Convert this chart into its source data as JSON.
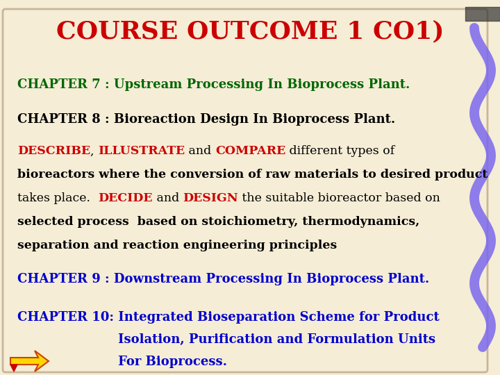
{
  "title": "COURSE OUTCOME 1 CO1)",
  "title_color": "#CC0000",
  "title_fontsize": 26,
  "background_color": "#F5EDD6",
  "figsize": [
    7.2,
    5.4
  ],
  "dpi": 100,
  "chapter7": "CHAPTER 7 : Upstream Processing In Bioprocess Plant.",
  "chapter7_color": "#006600",
  "chapter7_fontsize": 13,
  "chapter8": "CHAPTER 8 : Bioreaction Design In Bioprocess Plant.",
  "chapter8_color": "#000000",
  "chapter8_fontsize": 13,
  "chapter9": "CHAPTER 9 : Downstream Processing In Bioprocess Plant.",
  "chapter9_color": "#0000CC",
  "chapter9_fontsize": 13,
  "chapter10_line1": "CHAPTER 10: Integrated Bioseparation Scheme for Product",
  "chapter10_line2": "Isolation, Purification and Formulation Units",
  "chapter10_line3": "For Bioprocess.",
  "chapter10_color": "#0000CC",
  "chapter10_fontsize": 13,
  "border_color": "#C8B59A",
  "body_fontsize": 12.5,
  "red_color": "#CC0000",
  "black_color": "#000000",
  "squiggle_color": "#7B68EE",
  "desc_line1_black": "DESCRIBE, ILLUSTRATE and COMPARE different types of",
  "desc_line2": "bioreactors where the conversion of raw materials to desired product",
  "desc_line3_black": "takes place.  DECIDE and DESIGN the suitable bioreactor based on",
  "desc_line4": "selected process  based on stoichiometry, thermodynamics,",
  "desc_line5": "separation and reaction engineering principles"
}
